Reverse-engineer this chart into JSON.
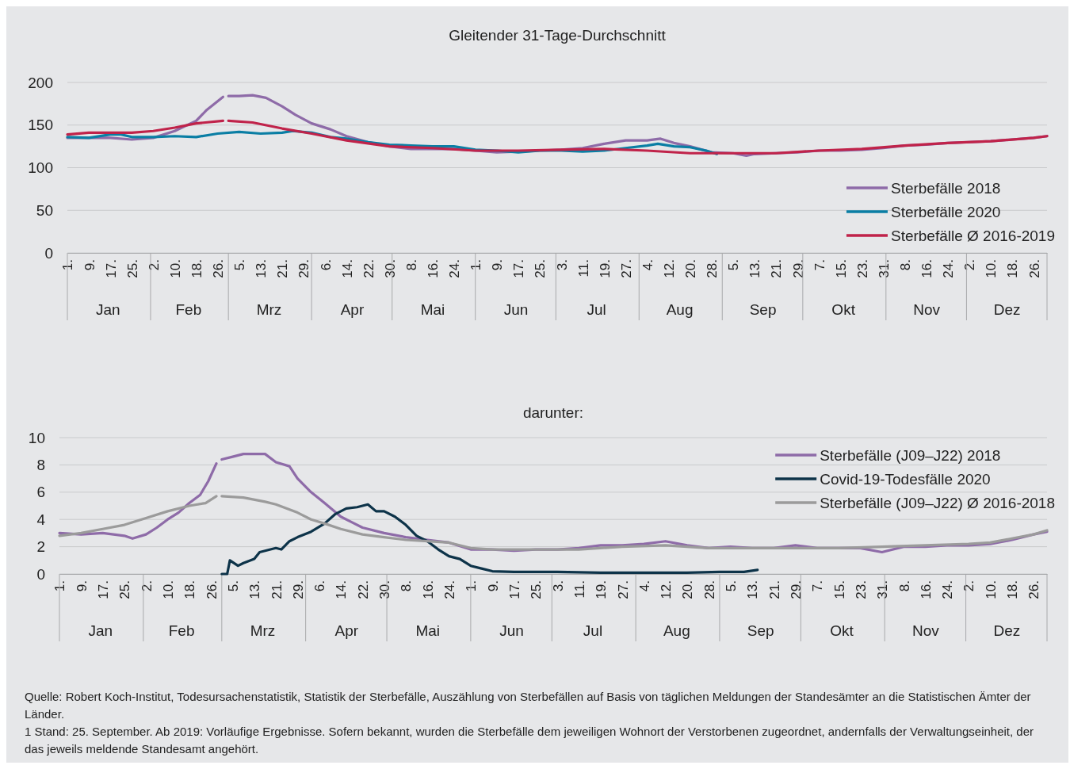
{
  "chart_data": [
    {
      "type": "line",
      "title": "Gleitender 31-Tage-Durchschnitt",
      "xlim": [
        "--01-01",
        "--12-31"
      ],
      "ylim": [
        0,
        200
      ],
      "yticks": [
        0,
        50,
        100,
        150,
        200
      ],
      "grid": "y",
      "legend": "bottom right",
      "line_style": "solid",
      "marker": "none",
      "xticks": [
        {
          "value": "--01-01",
          "label": "1."
        },
        {
          "value": "--01-09",
          "label": "9."
        },
        {
          "value": "--01-17",
          "label": "17."
        },
        {
          "value": "--01-25",
          "label": "25."
        },
        {
          "value": "--02-02",
          "label": "2."
        },
        {
          "value": "--02-10",
          "label": "10."
        },
        {
          "value": "--02-18",
          "label": "18."
        },
        {
          "value": "--02-26",
          "label": "26."
        },
        {
          "value": "--03-05",
          "label": "5."
        },
        {
          "value": "--03-13",
          "label": "13."
        },
        {
          "value": "--03-21",
          "label": "21."
        },
        {
          "value": "--03-29",
          "label": "29."
        },
        {
          "value": "--04-06",
          "label": "6."
        },
        {
          "value": "--04-14",
          "label": "14."
        },
        {
          "value": "--04-22",
          "label": "22."
        },
        {
          "value": "--04-30",
          "label": "30."
        },
        {
          "value": "--05-08",
          "label": "8."
        },
        {
          "value": "--05-16",
          "label": "16."
        },
        {
          "value": "--05-24",
          "label": "24."
        },
        {
          "value": "--06-01",
          "label": "1."
        },
        {
          "value": "--06-09",
          "label": "9."
        },
        {
          "value": "--06-17",
          "label": "17."
        },
        {
          "value": "--06-25",
          "label": "25."
        },
        {
          "value": "--07-03",
          "label": "3."
        },
        {
          "value": "--07-11",
          "label": "11."
        },
        {
          "value": "--07-19",
          "label": "19."
        },
        {
          "value": "--07-27",
          "label": "27."
        },
        {
          "value": "--08-04",
          "label": "4."
        },
        {
          "value": "--08-12",
          "label": "12."
        },
        {
          "value": "--08-20",
          "label": "20."
        },
        {
          "value": "--08-28",
          "label": "28."
        },
        {
          "value": "--09-05",
          "label": "5."
        },
        {
          "value": "--09-13",
          "label": "13."
        },
        {
          "value": "--09-21",
          "label": "21."
        },
        {
          "value": "--09-29",
          "label": "29."
        },
        {
          "value": "--10-07",
          "label": "7."
        },
        {
          "value": "--10-15",
          "label": "15."
        },
        {
          "value": "--10-23",
          "label": "23."
        },
        {
          "value": "--10-31",
          "label": "31."
        },
        {
          "value": "--11-08",
          "label": "8."
        },
        {
          "value": "--11-16",
          "label": "16."
        },
        {
          "value": "--11-24",
          "label": "24."
        },
        {
          "value": "--12-02",
          "label": "2."
        },
        {
          "value": "--12-10",
          "label": "10."
        },
        {
          "value": "--12-18",
          "label": "18."
        },
        {
          "value": "--12-26",
          "label": "26."
        }
      ],
      "x2lim": [
        "--01-01",
        "--12-31"
      ],
      "x2ticks": [
        {
          "value": "--01-16",
          "label": "Jan"
        },
        {
          "value": "--02-15",
          "label": "Feb"
        },
        {
          "value": "--03-16",
          "label": "Mrz"
        },
        {
          "value": "--04-16",
          "label": "Apr"
        },
        {
          "value": "--05-16",
          "label": "Mai"
        },
        {
          "value": "--06-16",
          "label": "Jun"
        },
        {
          "value": "--07-16",
          "label": "Jul"
        },
        {
          "value": "--08-16",
          "label": "Aug"
        },
        {
          "value": "--09-16",
          "label": "Sep"
        },
        {
          "value": "--10-16",
          "label": "Okt"
        },
        {
          "value": "--11-16",
          "label": "Nov"
        },
        {
          "value": "--12-16",
          "label": "Dez"
        }
      ],
      "series": [
        {
          "name": "Sterbefälle 2018",
          "color": "#8e6ba8",
          "x": [
            "--01-01",
            "--01-09",
            "--01-17",
            "--01-25",
            "--02-02",
            "--02-10",
            "--02-18",
            "--02-22",
            "--02-28",
            "--02-29",
            "--03-01",
            "--03-05",
            "--03-10",
            "--03-15",
            "--03-21",
            "--03-26",
            "--04-01",
            "--04-08",
            "--04-14",
            "--04-22",
            "--04-30",
            "--05-08",
            "--05-16",
            "--05-24",
            "--06-01",
            "--06-09",
            "--06-17",
            "--06-25",
            "--07-03",
            "--07-11",
            "--07-19",
            "--07-27",
            "--08-04",
            "--08-09",
            "--08-14",
            "--08-20",
            "--08-28",
            "--09-05",
            "--09-10",
            "--09-13",
            "--09-21",
            "--09-29",
            "--10-07",
            "--10-15",
            "--10-23",
            "--10-31",
            "--11-08",
            "--11-16",
            "--11-24",
            "--12-02",
            "--12-10",
            "--12-18",
            "--12-26",
            "--12-31"
          ],
          "values": [
            135,
            135,
            135,
            133,
            135,
            143,
            155,
            168,
            183,
            null,
            184,
            184,
            185,
            182,
            172,
            162,
            152,
            145,
            137,
            130,
            125,
            122,
            122,
            122,
            120,
            118,
            119,
            120,
            121,
            123,
            128,
            132,
            132,
            134,
            129,
            125,
            118,
            117,
            114,
            116,
            117,
            118,
            120,
            120,
            121,
            123,
            126,
            127,
            129,
            130,
            131,
            133,
            135,
            137
          ]
        },
        {
          "name": "Sterbefälle 2020",
          "color": "#0a7ea4",
          "x": [
            "--01-01",
            "--01-09",
            "--01-17",
            "--01-21",
            "--01-25",
            "--02-02",
            "--02-10",
            "--02-18",
            "--02-26",
            "--03-05",
            "--03-13",
            "--03-21",
            "--03-25",
            "--04-01",
            "--04-08",
            "--04-14",
            "--04-22",
            "--04-30",
            "--05-08",
            "--05-16",
            "--05-24",
            "--06-01",
            "--06-09",
            "--06-17",
            "--06-25",
            "--07-03",
            "--07-11",
            "--07-19",
            "--07-27",
            "--08-04",
            "--08-08",
            "--08-14",
            "--08-20",
            "--08-26",
            "--08-30"
          ],
          "values": [
            136,
            135,
            139,
            139,
            136,
            136,
            137,
            136,
            140,
            142,
            140,
            141,
            143,
            141,
            136,
            134,
            130,
            127,
            126,
            125,
            125,
            121,
            120,
            118,
            120,
            120,
            119,
            120,
            123,
            126,
            128,
            125,
            124,
            120,
            116
          ]
        },
        {
          "name": "Sterbefälle Ø 2016-2019",
          "color": "#c0234a",
          "x": [
            "--01-01",
            "--01-09",
            "--01-17",
            "--01-25",
            "--02-02",
            "--02-10",
            "--02-18",
            "--02-28",
            "--02-29",
            "--03-01",
            "--03-10",
            "--03-21",
            "--04-01",
            "--04-14",
            "--04-30",
            "--05-16",
            "--06-01",
            "--06-17",
            "--07-03",
            "--07-19",
            "--08-04",
            "--08-20",
            "--09-05",
            "--09-21",
            "--10-07",
            "--10-23",
            "--11-08",
            "--11-24",
            "--12-10",
            "--12-26",
            "--12-31"
          ],
          "values": [
            139,
            141,
            141,
            141,
            143,
            147,
            152,
            155,
            null,
            155,
            153,
            146,
            140,
            132,
            125,
            123,
            120,
            120,
            121,
            122,
            120,
            117,
            117,
            117,
            120,
            122,
            126,
            129,
            131,
            135,
            137
          ]
        }
      ]
    },
    {
      "type": "line",
      "title": "darunter:",
      "xlim": [
        "--01-01",
        "--12-31"
      ],
      "ylim": [
        0,
        10
      ],
      "yticks": [
        0,
        2,
        4,
        6,
        8,
        10
      ],
      "grid": "y",
      "legend": "top right",
      "line_style": "solid",
      "marker": "none",
      "xticks": [
        {
          "value": "--01-01",
          "label": "1."
        },
        {
          "value": "--01-09",
          "label": "9."
        },
        {
          "value": "--01-17",
          "label": "17."
        },
        {
          "value": "--01-25",
          "label": "25."
        },
        {
          "value": "--02-02",
          "label": "2."
        },
        {
          "value": "--02-10",
          "label": "10."
        },
        {
          "value": "--02-18",
          "label": "18."
        },
        {
          "value": "--02-26",
          "label": "26."
        },
        {
          "value": "--03-05",
          "label": "5."
        },
        {
          "value": "--03-13",
          "label": "13."
        },
        {
          "value": "--03-21",
          "label": "21."
        },
        {
          "value": "--03-29",
          "label": "29."
        },
        {
          "value": "--04-06",
          "label": "6."
        },
        {
          "value": "--04-14",
          "label": "14."
        },
        {
          "value": "--04-22",
          "label": "22."
        },
        {
          "value": "--04-30",
          "label": "30."
        },
        {
          "value": "--05-08",
          "label": "8."
        },
        {
          "value": "--05-16",
          "label": "16."
        },
        {
          "value": "--05-24",
          "label": "24."
        },
        {
          "value": "--06-01",
          "label": "1."
        },
        {
          "value": "--06-09",
          "label": "9."
        },
        {
          "value": "--06-17",
          "label": "17."
        },
        {
          "value": "--06-25",
          "label": "25."
        },
        {
          "value": "--07-03",
          "label": "3."
        },
        {
          "value": "--07-11",
          "label": "11."
        },
        {
          "value": "--07-19",
          "label": "19."
        },
        {
          "value": "--07-27",
          "label": "27."
        },
        {
          "value": "--08-04",
          "label": "4."
        },
        {
          "value": "--08-12",
          "label": "12."
        },
        {
          "value": "--08-20",
          "label": "20."
        },
        {
          "value": "--08-28",
          "label": "28."
        },
        {
          "value": "--09-05",
          "label": "5."
        },
        {
          "value": "--09-13",
          "label": "13."
        },
        {
          "value": "--09-21",
          "label": "21."
        },
        {
          "value": "--09-29",
          "label": "29."
        },
        {
          "value": "--10-07",
          "label": "7."
        },
        {
          "value": "--10-15",
          "label": "15."
        },
        {
          "value": "--10-23",
          "label": "23."
        },
        {
          "value": "--10-31",
          "label": "31."
        },
        {
          "value": "--11-08",
          "label": "8."
        },
        {
          "value": "--11-16",
          "label": "16."
        },
        {
          "value": "--11-24",
          "label": "24."
        },
        {
          "value": "--12-02",
          "label": "2."
        },
        {
          "value": "--12-10",
          "label": "10."
        },
        {
          "value": "--12-18",
          "label": "18."
        },
        {
          "value": "--12-26",
          "label": "26."
        }
      ],
      "x2lim": [
        "--01-01",
        "--12-31"
      ],
      "x2ticks": [
        {
          "value": "--01-16",
          "label": "Jan"
        },
        {
          "value": "--02-15",
          "label": "Feb"
        },
        {
          "value": "--03-16",
          "label": "Mrz"
        },
        {
          "value": "--04-16",
          "label": "Apr"
        },
        {
          "value": "--05-16",
          "label": "Mai"
        },
        {
          "value": "--06-16",
          "label": "Jun"
        },
        {
          "value": "--07-16",
          "label": "Jul"
        },
        {
          "value": "--08-16",
          "label": "Aug"
        },
        {
          "value": "--09-16",
          "label": "Sep"
        },
        {
          "value": "--10-16",
          "label": "Okt"
        },
        {
          "value": "--11-16",
          "label": "Nov"
        },
        {
          "value": "--12-16",
          "label": "Dez"
        }
      ],
      "series": [
        {
          "name": "Sterbefälle (J09–J22) 2018",
          "color": "#8e6ba8",
          "x": [
            "--01-01",
            "--01-09",
            "--01-17",
            "--01-25",
            "--01-28",
            "--02-02",
            "--02-06",
            "--02-10",
            "--02-14",
            "--02-18",
            "--02-22",
            "--02-25",
            "--02-28",
            "--02-29",
            "--03-01",
            "--03-05",
            "--03-09",
            "--03-13",
            "--03-17",
            "--03-21",
            "--03-26",
            "--03-29",
            "--04-03",
            "--04-08",
            "--04-14",
            "--04-18",
            "--04-22",
            "--04-30",
            "--05-08",
            "--05-16",
            "--05-24",
            "--06-01",
            "--06-09",
            "--06-17",
            "--06-25",
            "--07-03",
            "--07-11",
            "--07-19",
            "--07-27",
            "--08-04",
            "--08-12",
            "--08-20",
            "--08-28",
            "--09-05",
            "--09-13",
            "--09-21",
            "--09-29",
            "--10-07",
            "--10-15",
            "--10-23",
            "--10-31",
            "--11-08",
            "--11-16",
            "--11-24",
            "--12-02",
            "--12-10",
            "--12-18",
            "--12-26",
            "--12-31"
          ],
          "values": [
            3.0,
            2.9,
            3.0,
            2.8,
            2.6,
            2.9,
            3.4,
            4.0,
            4.5,
            5.2,
            5.8,
            6.8,
            8.1,
            null,
            8.4,
            8.6,
            8.8,
            8.8,
            8.8,
            8.2,
            7.9,
            7.0,
            6.0,
            5.2,
            4.2,
            3.8,
            3.4,
            3.0,
            2.7,
            2.5,
            2.3,
            1.8,
            1.8,
            1.7,
            1.8,
            1.8,
            1.9,
            2.1,
            2.1,
            2.2,
            2.4,
            2.1,
            1.9,
            2.0,
            1.9,
            1.9,
            2.1,
            1.9,
            1.9,
            1.9,
            1.6,
            2.0,
            2.0,
            2.1,
            2.1,
            2.2,
            2.5,
            2.9,
            3.1
          ]
        },
        {
          "name": "Covid-19-Todesfälle 2020",
          "color": "#0d3349",
          "x": [
            "--03-01",
            "--03-03",
            "--03-04",
            "--03-07",
            "--03-09",
            "--03-13",
            "--03-15",
            "--03-21",
            "--03-23",
            "--03-26",
            "--03-29",
            "--04-03",
            "--04-08",
            "--04-12",
            "--04-16",
            "--04-20",
            "--04-24",
            "--04-27",
            "--04-30",
            "--05-04",
            "--05-08",
            "--05-12",
            "--05-16",
            "--05-20",
            "--05-24",
            "--05-28",
            "--06-01",
            "--06-05",
            "--06-09",
            "--06-17",
            "--07-03",
            "--07-19",
            "--08-04",
            "--08-20",
            "--09-01",
            "--09-10",
            "--09-15"
          ],
          "values": [
            0,
            0,
            1.0,
            0.6,
            0.8,
            1.1,
            1.6,
            1.9,
            1.8,
            2.4,
            2.7,
            3.1,
            3.7,
            4.4,
            4.8,
            4.9,
            5.1,
            4.6,
            4.6,
            4.2,
            3.6,
            2.8,
            2.4,
            1.8,
            1.3,
            1.1,
            0.6,
            0.4,
            0.2,
            0.15,
            0.15,
            0.1,
            0.1,
            0.1,
            0.15,
            0.15,
            0.3
          ]
        },
        {
          "name": "Sterbefälle (J09–J22) Ø 2016-2018",
          "color": "#9b9b9b",
          "x": [
            "--01-01",
            "--01-09",
            "--01-17",
            "--01-25",
            "--02-02",
            "--02-10",
            "--02-18",
            "--02-24",
            "--02-28",
            "--02-29",
            "--03-01",
            "--03-09",
            "--03-17",
            "--03-21",
            "--03-29",
            "--04-03",
            "--04-08",
            "--04-14",
            "--04-22",
            "--04-30",
            "--05-08",
            "--05-16",
            "--05-24",
            "--06-01",
            "--06-09",
            "--06-25",
            "--07-11",
            "--07-27",
            "--08-12",
            "--08-28",
            "--09-13",
            "--09-29",
            "--10-15",
            "--10-31",
            "--11-16",
            "--12-02",
            "--12-10",
            "--12-18",
            "--12-26",
            "--12-31"
          ],
          "values": [
            2.8,
            3.0,
            3.3,
            3.6,
            4.1,
            4.6,
            5.0,
            5.2,
            5.7,
            null,
            5.7,
            5.6,
            5.3,
            5.1,
            4.5,
            4.0,
            3.7,
            3.3,
            2.9,
            2.7,
            2.5,
            2.4,
            2.3,
            1.9,
            1.8,
            1.8,
            1.8,
            2.0,
            2.1,
            1.9,
            1.9,
            1.9,
            1.9,
            2.0,
            2.1,
            2.2,
            2.3,
            2.6,
            2.9,
            3.2
          ]
        }
      ],
      "annotations": [
        "Quelle: Robert Koch-Institut, Todesursachenstatistik, Statistik der Sterbefälle, Auszählung von Sterbefällen auf Basis von täglichen Meldungen der Standesämter an die Statistischen Ämter der Länder.",
        "1 Stand: 25. September. Ab 2019: Vorläufige Ergebnisse. Sofern bekannt, wurden die Sterbefälle dem jeweiligen Wohnort der Verstorbenen zugeordnet, andernfalls der Verwaltungseinheit, der das jeweils meldende Standesamt angehört."
      ]
    }
  ]
}
